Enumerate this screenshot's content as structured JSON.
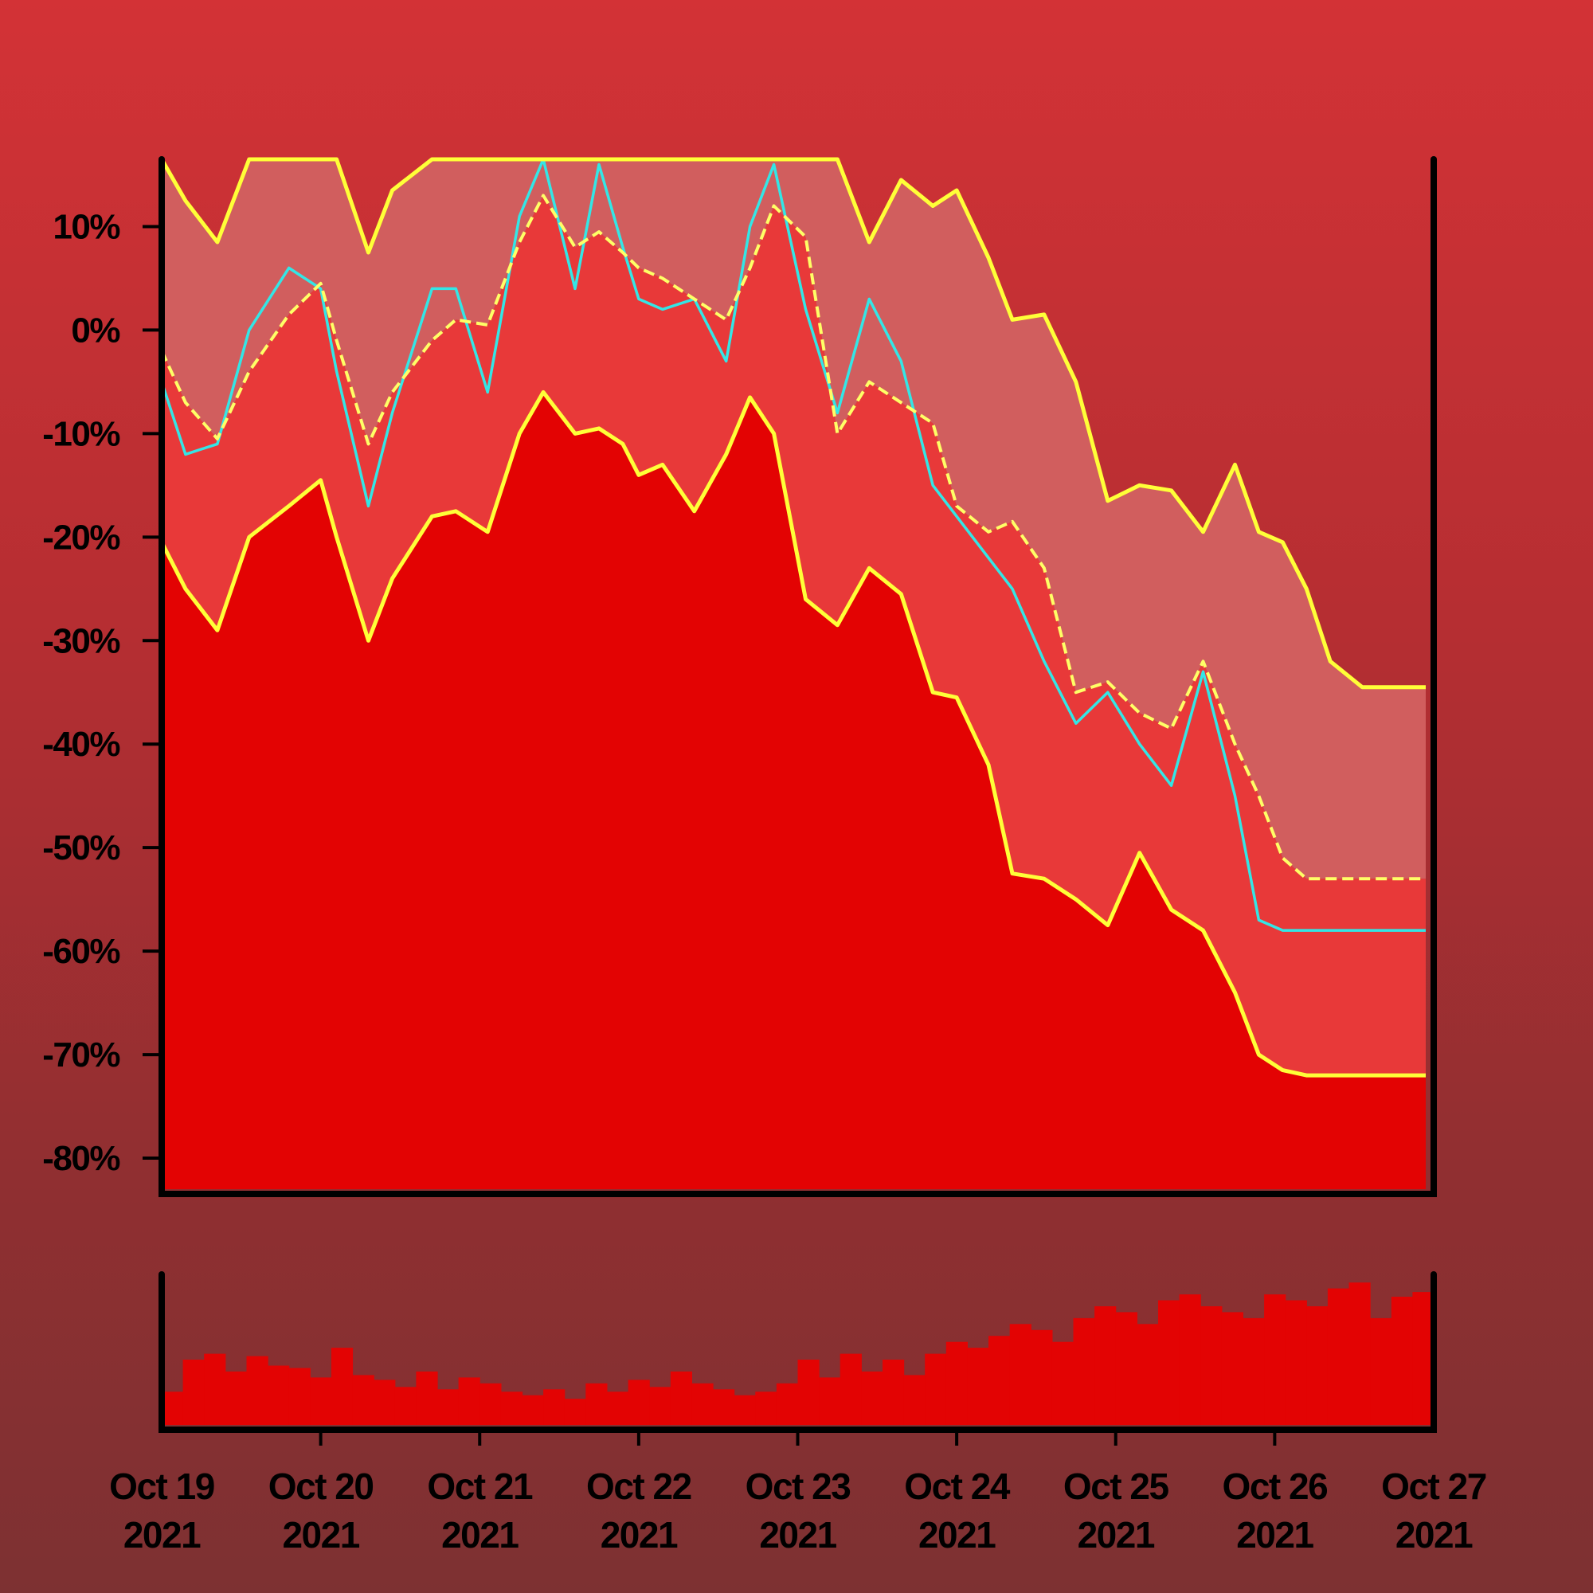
{
  "chart_data": [
    {
      "type": "area",
      "title": "",
      "xlabel": "",
      "ylabel": "",
      "ylim": [
        -83,
        16.5
      ],
      "y_ticks": [
        {
          "value": 10,
          "label": "10%"
        },
        {
          "value": 0,
          "label": "0%"
        },
        {
          "value": -10,
          "label": "-10%"
        },
        {
          "value": -20,
          "label": "-20%"
        },
        {
          "value": -30,
          "label": "-30%"
        },
        {
          "value": -40,
          "label": "-40%"
        },
        {
          "value": -50,
          "label": "-50%"
        },
        {
          "value": -60,
          "label": "-60%"
        },
        {
          "value": -70,
          "label": "-70%"
        },
        {
          "value": -80,
          "label": "-80%"
        }
      ],
      "x_ticks": [
        {
          "value": 0,
          "line1": "Oct 19",
          "line2": "2021"
        },
        {
          "value": 1,
          "line1": "Oct 20",
          "line2": "2021"
        },
        {
          "value": 2,
          "line1": "Oct 21",
          "line2": "2021"
        },
        {
          "value": 3,
          "line1": "Oct 22",
          "line2": "2021"
        },
        {
          "value": 4,
          "line1": "Oct 23",
          "line2": "2021"
        },
        {
          "value": 5,
          "line1": "Oct 24",
          "line2": "2021"
        },
        {
          "value": 6,
          "line1": "Oct 25",
          "line2": "2021"
        },
        {
          "value": 7,
          "line1": "Oct 26",
          "line2": "2021"
        },
        {
          "value": 8,
          "line1": "Oct 27",
          "line2": "2021"
        }
      ],
      "x": [
        0,
        0.15,
        0.35,
        0.55,
        0.8,
        1.0,
        1.1,
        1.3,
        1.45,
        1.7,
        1.85,
        2.05,
        2.25,
        2.4,
        2.6,
        2.75,
        2.9,
        3.0,
        3.15,
        3.35,
        3.55,
        3.7,
        3.85,
        4.05,
        4.25,
        4.45,
        4.65,
        4.85,
        5.0,
        5.2,
        5.35,
        5.55,
        5.75,
        5.95,
        6.15,
        6.35,
        6.55,
        6.75,
        6.9,
        7.05,
        7.2,
        7.35,
        7.55,
        7.75,
        7.95
      ],
      "series": [
        {
          "values": [
            16.5,
            12.5,
            8.5,
            16.5,
            16.5,
            16.5,
            16.5,
            7.5,
            13.5,
            16.5,
            16.5,
            16.5,
            16.5,
            16.5,
            16.5,
            16.5,
            16.5,
            16.5,
            16.5,
            16.5,
            16.5,
            16.5,
            16.5,
            16.5,
            16.5,
            8.5,
            14.5,
            12,
            13.5,
            7,
            1,
            1.5,
            -5,
            -16.5,
            -15,
            -15.5,
            -19.5,
            -13,
            -19.5,
            -20.5,
            -25,
            -32,
            -34.5,
            -34.5,
            -34.5
          ]
        },
        {
          "values": [
            -2,
            -7,
            -10.5,
            -4,
            1.5,
            4.5,
            -1,
            -11,
            -6,
            -1,
            1,
            0.5,
            8.5,
            13,
            8,
            9.5,
            7.5,
            6,
            5,
            3,
            1,
            6,
            12,
            9,
            -10,
            -5,
            -7,
            -9,
            -17,
            -19.5,
            -18.5,
            -23,
            -35,
            -34,
            -37,
            -38.5,
            -32,
            -40,
            -45,
            -51,
            -53,
            -53,
            -53,
            -53,
            -53
          ]
        },
        {
          "values": [
            -20.5,
            -25,
            -29,
            -20,
            -17,
            -14.5,
            -20,
            -30,
            -24,
            -18,
            -17.5,
            -19.5,
            -10,
            -6,
            -10,
            -9.5,
            -11,
            -14,
            -13,
            -17.5,
            -12,
            -6.5,
            -10,
            -26,
            -28.5,
            -23,
            -25.5,
            -35,
            -35.5,
            -42,
            -52.5,
            -53,
            -55,
            -57.5,
            -50.5,
            -56,
            -58,
            -64,
            -70,
            -71.5,
            -72,
            -72,
            -72,
            -72,
            -72
          ]
        },
        {
          "values": [
            -5,
            -12,
            -11,
            0,
            6,
            4,
            -4,
            -17,
            -8,
            4,
            4,
            -6,
            11,
            16.5,
            4,
            16,
            8,
            3,
            2,
            3,
            -3,
            10,
            16,
            2,
            -8,
            3,
            -3,
            -15,
            -18,
            -22,
            -25,
            -32,
            -38,
            -35,
            -40,
            -44,
            -33,
            -45,
            -57,
            -58,
            -58,
            -58,
            -58,
            -58,
            -58
          ]
        }
      ]
    },
    {
      "type": "bar",
      "title": "",
      "values": [
        28,
        55,
        60,
        45,
        58,
        50,
        48,
        40,
        65,
        42,
        38,
        32,
        45,
        30,
        40,
        35,
        28,
        25,
        30,
        22,
        35,
        28,
        38,
        32,
        45,
        35,
        30,
        25,
        28,
        35,
        55,
        40,
        60,
        45,
        55,
        42,
        60,
        70,
        65,
        75,
        85,
        80,
        70,
        90,
        100,
        95,
        85,
        105,
        110,
        100,
        95,
        90,
        110,
        105,
        100,
        115,
        120,
        90,
        108,
        112
      ]
    }
  ]
}
